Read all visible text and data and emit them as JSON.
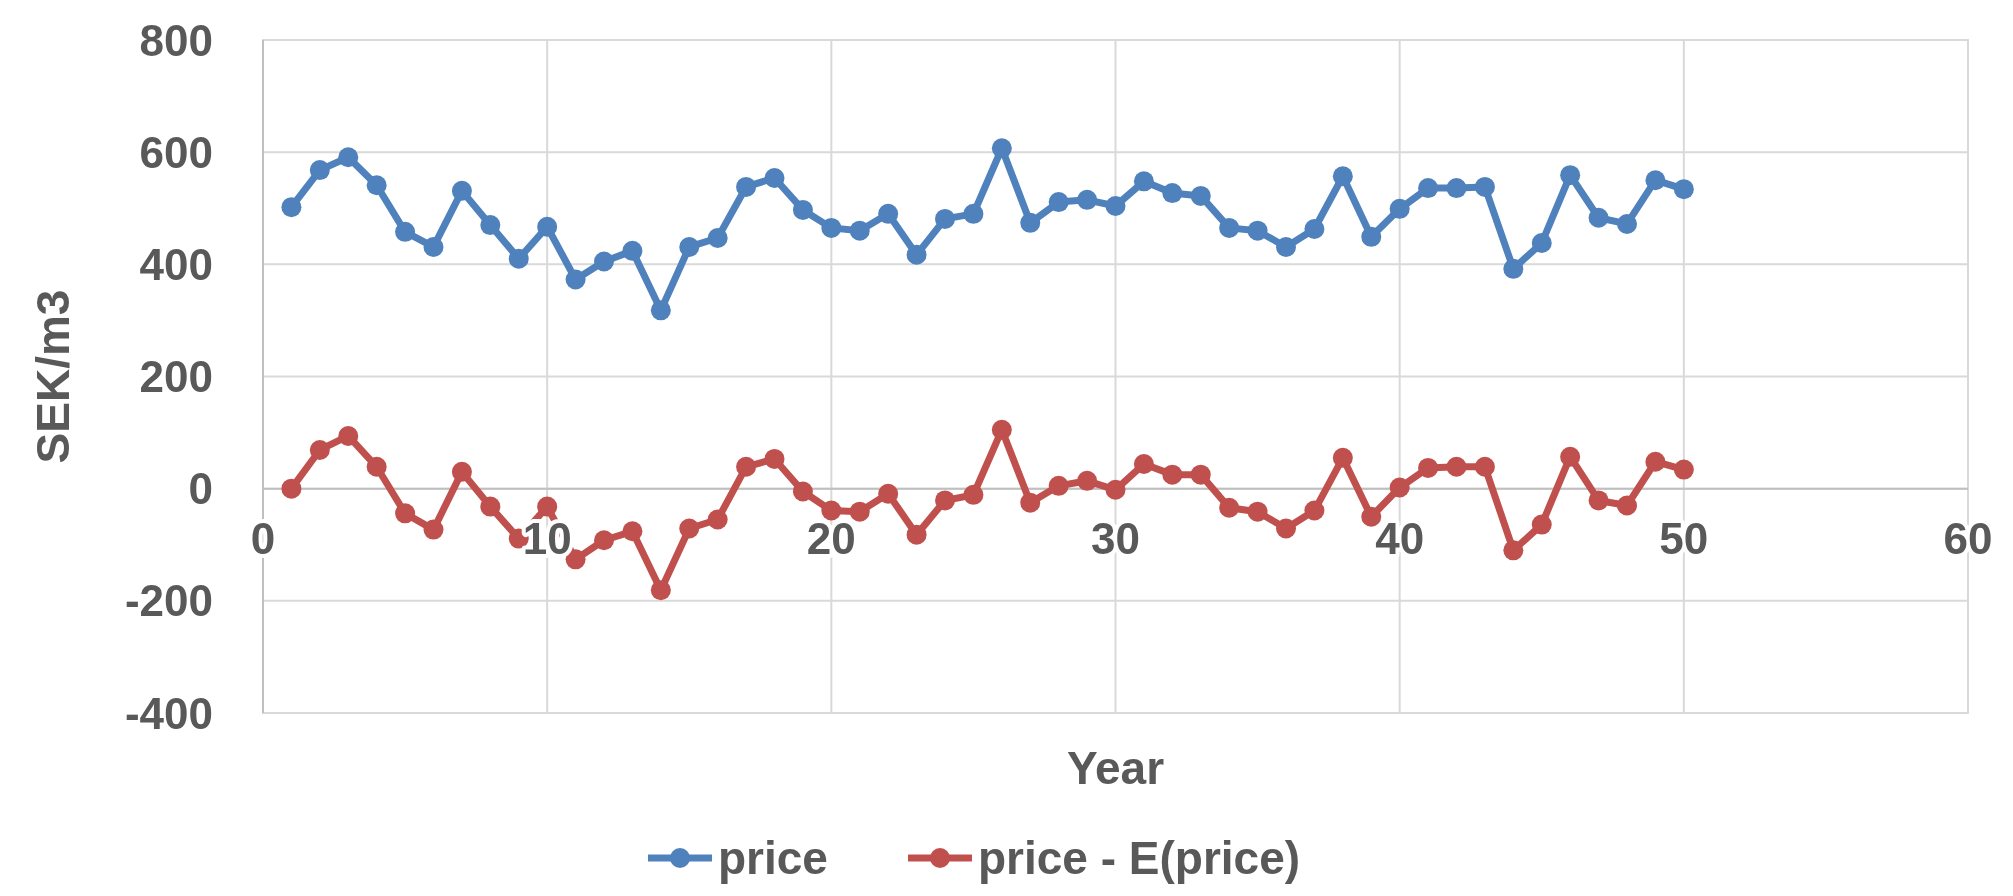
{
  "chart_data": {
    "type": "line",
    "xlabel": "Year",
    "ylabel": "SEK/m3",
    "x": [
      1,
      2,
      3,
      4,
      5,
      6,
      7,
      8,
      9,
      10,
      11,
      12,
      13,
      14,
      15,
      16,
      17,
      18,
      19,
      20,
      21,
      22,
      23,
      24,
      25,
      26,
      27,
      28,
      29,
      30,
      31,
      32,
      33,
      34,
      35,
      36,
      37,
      38,
      39,
      40,
      41,
      42,
      43,
      44,
      45,
      46,
      47,
      48,
      49,
      50
    ],
    "series": [
      {
        "name": "price",
        "color": "#4f81bd",
        "values": [
          502,
          568,
          591,
          541,
          458,
          431,
          531,
          470,
          410,
          467,
          373,
          405,
          424,
          318,
          431,
          447,
          538,
          554,
          497,
          465,
          460,
          490,
          417,
          481,
          490,
          607,
          474,
          511,
          515,
          504,
          548,
          527,
          522,
          465,
          460,
          431,
          463,
          557,
          449,
          499,
          536,
          536,
          538,
          392,
          438,
          559,
          483,
          472,
          550,
          534
        ]
      },
      {
        "name": "price - E(price)",
        "color": "#c0504d",
        "values": [
          0,
          69,
          94,
          39,
          -44,
          -73,
          30,
          -32,
          -89,
          -32,
          -126,
          -92,
          -76,
          -181,
          -71,
          -55,
          39,
          53,
          -5,
          -39,
          -41,
          -9,
          -82,
          -21,
          -11,
          105,
          -25,
          5,
          14,
          -2,
          44,
          25,
          25,
          -34,
          -41,
          -71,
          -39,
          55,
          -50,
          2,
          37,
          39,
          39,
          -110,
          -64,
          57,
          -21,
          -30,
          48,
          34
        ]
      }
    ],
    "xlim": [
      0,
      60
    ],
    "xticks": [
      0,
      10,
      20,
      30,
      40,
      50,
      60
    ],
    "ylim": [
      -400,
      800
    ],
    "yticks": [
      -400,
      -200,
      0,
      200,
      400,
      600,
      800
    ],
    "grid": true,
    "legend": "bottom",
    "marker": "circle",
    "line_style": "solid"
  }
}
